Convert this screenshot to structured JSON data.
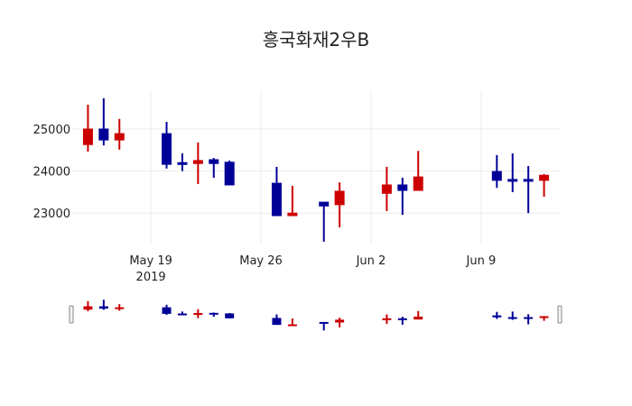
{
  "title": "흥국화재2우B",
  "colors": {
    "increasing": "#CC0000",
    "decreasing": "#000099",
    "grid": "#EBEBEB",
    "handle": "#888888"
  },
  "chart_data": {
    "type": "candlestick",
    "title": "흥국화재2우B",
    "xlabel": "",
    "ylabel": "",
    "ylim": [
      22150,
      25950
    ],
    "xlim": [
      "2019-05-14",
      "2019-06-14"
    ],
    "y_ticks": [
      23000,
      24000,
      25000
    ],
    "x_ticks": [
      {
        "date": "2019-05-19",
        "label": "May 19",
        "sublabel": "2019"
      },
      {
        "date": "2019-05-26",
        "label": "May 26",
        "sublabel": ""
      },
      {
        "date": "2019-06-02",
        "label": "Jun 2",
        "sublabel": ""
      },
      {
        "date": "2019-06-09",
        "label": "Jun 9",
        "sublabel": ""
      }
    ],
    "grid": true,
    "rangeslider": true,
    "legend": false,
    "series": [
      {
        "date": "2019-05-15",
        "open": 24630,
        "high": 25580,
        "low": 24460,
        "close": 25000
      },
      {
        "date": "2019-05-16",
        "open": 25000,
        "high": 25730,
        "low": 24610,
        "close": 24740
      },
      {
        "date": "2019-05-17",
        "open": 24740,
        "high": 25240,
        "low": 24510,
        "close": 24890
      },
      {
        "date": "2019-05-20",
        "open": 24890,
        "high": 25170,
        "low": 24060,
        "close": 24160
      },
      {
        "date": "2019-05-21",
        "open": 24200,
        "high": 24420,
        "low": 24000,
        "close": 24170
      },
      {
        "date": "2019-05-22",
        "open": 24180,
        "high": 24680,
        "low": 23690,
        "close": 24250
      },
      {
        "date": "2019-05-23",
        "open": 24270,
        "high": 24310,
        "low": 23840,
        "close": 24180
      },
      {
        "date": "2019-05-24",
        "open": 24210,
        "high": 24250,
        "low": 23670,
        "close": 23670
      },
      {
        "date": "2019-05-27",
        "open": 23710,
        "high": 24100,
        "low": 22940,
        "close": 22940
      },
      {
        "date": "2019-05-28",
        "open": 22940,
        "high": 23650,
        "low": 22940,
        "close": 23000
      },
      {
        "date": "2019-05-30",
        "open": 23260,
        "high": 23260,
        "low": 22320,
        "close": 23170
      },
      {
        "date": "2019-05-31",
        "open": 23200,
        "high": 23730,
        "low": 22660,
        "close": 23520
      },
      {
        "date": "2019-06-03",
        "open": 23470,
        "high": 24100,
        "low": 23050,
        "close": 23670
      },
      {
        "date": "2019-06-04",
        "open": 23670,
        "high": 23840,
        "low": 22960,
        "close": 23540
      },
      {
        "date": "2019-06-05",
        "open": 23540,
        "high": 24480,
        "low": 23540,
        "close": 23860
      },
      {
        "date": "2019-06-10",
        "open": 23990,
        "high": 24380,
        "low": 23600,
        "close": 23780
      },
      {
        "date": "2019-06-11",
        "open": 23800,
        "high": 24420,
        "low": 23500,
        "close": 23780
      },
      {
        "date": "2019-06-12",
        "open": 23800,
        "high": 24120,
        "low": 23000,
        "close": 23780
      },
      {
        "date": "2019-06-13",
        "open": 23780,
        "high": 23930,
        "low": 23390,
        "close": 23900
      }
    ]
  }
}
